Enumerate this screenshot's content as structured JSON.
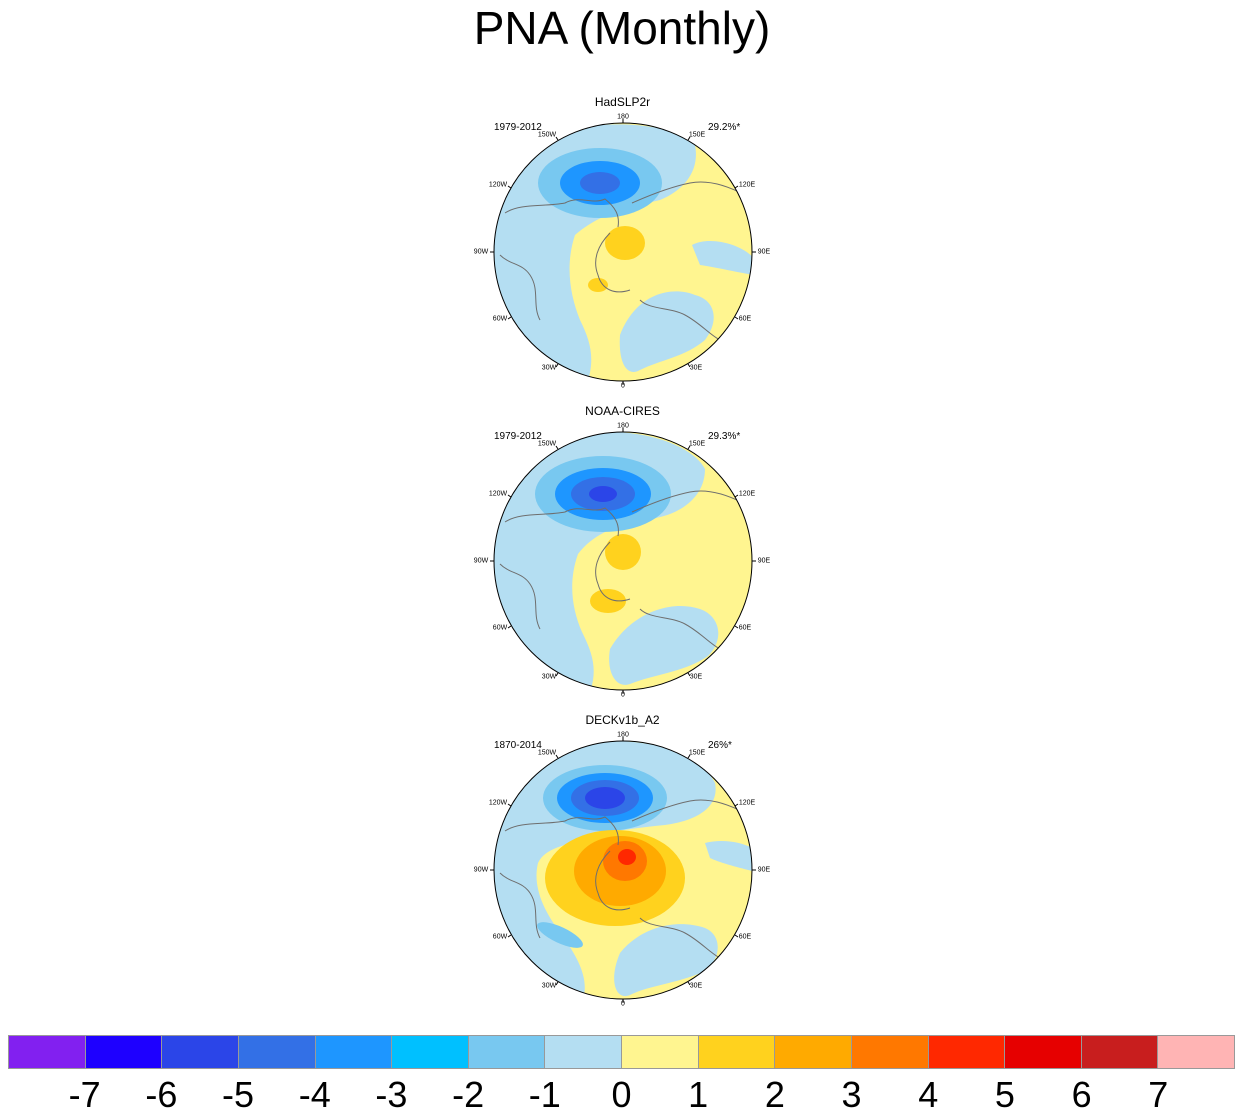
{
  "title": "PNA (Monthly)",
  "panels": [
    {
      "name": "HadSLP2r",
      "period": "1979-2012",
      "pct": "29.2%*"
    },
    {
      "name": "NOAA-CIRES",
      "period": "1979-2012",
      "pct": "29.3%*"
    },
    {
      "name": "DECKv1b_A2",
      "period": "1870-2014",
      "pct": "26%*"
    }
  ],
  "longitude_labels": [
    "180",
    "150E",
    "120E",
    "90E",
    "60E",
    "30E",
    "0",
    "30W",
    "60W",
    "90W",
    "120W",
    "150W"
  ],
  "colorbar": {
    "labels": [
      "-7",
      "-6",
      "-5",
      "-4",
      "-3",
      "-2",
      "-1",
      "0",
      "1",
      "2",
      "3",
      "4",
      "5",
      "6",
      "7"
    ],
    "colors": [
      "#8220f0",
      "#1e00ff",
      "#2b45e8",
      "#3370e6",
      "#1e96ff",
      "#00c0ff",
      "#78c8f0",
      "#b4def2",
      "#fff590",
      "#ffd21e",
      "#ffaa00",
      "#ff7800",
      "#ff2800",
      "#e60000",
      "#c81e1e",
      "#ffb4b4"
    ]
  }
}
